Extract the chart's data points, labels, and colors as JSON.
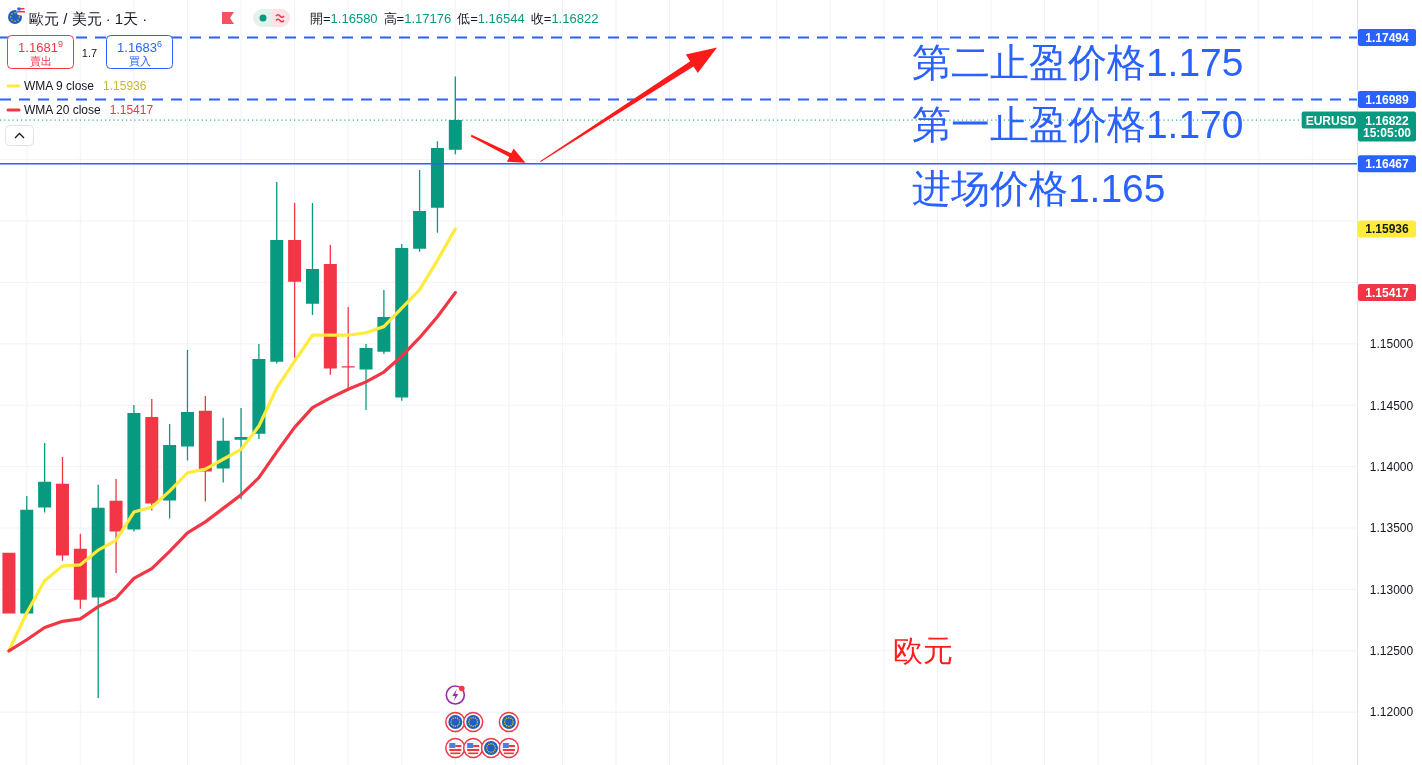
{
  "chart_data": {
    "type": "candlestick",
    "title": "歐元 / 美元 · 1天 ·",
    "categories": [
      null,
      null,
      null,
      null,
      null,
      null,
      null,
      null,
      null,
      null,
      null,
      null,
      null,
      null,
      null,
      null,
      null,
      null,
      null,
      null,
      null,
      null,
      null,
      null,
      null,
      null,
      null,
      null,
      null,
      null,
      null,
      null,
      null,
      null,
      null,
      null,
      null,
      null,
      null,
      null,
      null,
      null,
      null,
      null,
      null,
      null,
      null,
      null,
      null,
      null,
      null,
      null,
      null,
      null,
      null,
      null,
      null,
      null,
      null,
      null,
      null,
      null,
      null,
      null,
      null,
      null,
      null,
      null,
      null,
      null,
      null,
      null,
      null,
      null,
      null,
      null
    ],
    "ohlc": [
      [
        1.13298,
        1.13298,
        1.12804,
        1.12804
      ],
      [
        1.12804,
        1.13761,
        1.1279,
        1.13648
      ],
      [
        1.13667,
        1.14193,
        1.13626,
        1.13876
      ],
      [
        1.1386,
        1.14079,
        1.13233,
        1.13276
      ],
      [
        1.13331,
        1.13453,
        1.12843,
        1.12916
      ],
      [
        1.12935,
        1.13852,
        1.12116,
        1.13664
      ],
      [
        1.13721,
        1.139,
        1.13133,
        1.13472
      ],
      [
        1.13488,
        1.14502,
        1.13472,
        1.14437
      ],
      [
        1.14405,
        1.14551,
        1.13642,
        1.13699
      ],
      [
        1.13724,
        1.14348,
        1.13577,
        1.14177
      ],
      [
        1.14163,
        1.1495,
        1.14049,
        1.14445
      ],
      [
        1.14454,
        1.14576,
        1.13716,
        1.1396
      ],
      [
        1.13984,
        1.14397,
        1.1387,
        1.1421
      ],
      [
        1.14218,
        1.14478,
        1.13735,
        1.14242
      ],
      [
        1.14267,
        1.14999,
        1.14225,
        1.14877
      ],
      [
        1.14855,
        1.16317,
        1.1484,
        1.15845
      ],
      [
        1.15845,
        1.16146,
        1.14887,
        1.15506
      ],
      [
        1.15327,
        1.16146,
        1.15235,
        1.15609
      ],
      [
        1.1565,
        1.15804,
        1.14749,
        1.14798
      ],
      [
        1.14812,
        1.153,
        1.14616,
        1.14812
      ],
      [
        1.1479,
        1.14999,
        1.14462,
        1.14966
      ],
      [
        1.14936,
        1.15438,
        1.14917,
        1.15219
      ],
      [
        1.14562,
        1.15812,
        1.14537,
        1.1578
      ],
      [
        1.15774,
        1.16415,
        1.1575,
        1.16081
      ],
      [
        1.16108,
        1.1665,
        1.15904,
        1.16594
      ],
      [
        1.1658,
        1.17176,
        1.16544,
        1.16822
      ],
      null,
      null,
      null,
      null,
      null,
      null,
      null,
      null,
      null,
      null,
      null,
      null,
      null,
      null,
      null,
      null,
      null,
      null,
      null,
      null,
      null,
      null,
      null,
      null,
      null,
      null,
      null,
      null,
      null,
      null,
      null,
      null,
      null,
      null,
      null,
      null,
      null,
      null,
      null,
      null,
      null,
      null,
      null,
      null,
      null,
      null,
      null,
      null,
      null,
      null
    ],
    "colors": [
      "#f23645",
      "#089981",
      "#089981",
      "#f23645",
      "#f23645",
      "#089981",
      "#f23645",
      "#089981",
      "#f23645",
      "#089981",
      "#089981",
      "#f23645",
      "#089981",
      "#089981",
      "#089981",
      "#089981",
      "#f23645",
      "#089981",
      "#f23645",
      "#f23645",
      "#089981",
      "#089981",
      "#089981",
      "#089981",
      "#089981",
      "#089981",
      null,
      null,
      null,
      null,
      null,
      null,
      null,
      null,
      null,
      null,
      null,
      null,
      null,
      null,
      null,
      null,
      null,
      null,
      null,
      null,
      null,
      null,
      null,
      null,
      null,
      null,
      null,
      null,
      null,
      null,
      null,
      null,
      null,
      null,
      null,
      null,
      null,
      null,
      null,
      null,
      null,
      null,
      null,
      null,
      null,
      null,
      null,
      null,
      null,
      null
    ],
    "series": [
      {
        "name": "WMA 9 close",
        "type": "line",
        "color": "#ffeb3b",
        "values": [
          1.125,
          1.1281,
          1.1307,
          1.1319,
          1.132,
          1.1332,
          1.134,
          1.1363,
          1.1367,
          1.138,
          1.1395,
          1.1398,
          1.1406,
          1.1414,
          1.1433,
          1.1464,
          1.1486,
          1.1507,
          1.1507,
          1.1507,
          1.1509,
          1.1514,
          1.1529,
          1.1544,
          1.1568,
          1.15936,
          null,
          null,
          null,
          null,
          null,
          null,
          null,
          null,
          null,
          null,
          null,
          null,
          null,
          null,
          null,
          null,
          null,
          null,
          null,
          null,
          null,
          null,
          null,
          null,
          null,
          null,
          null,
          null,
          null,
          null,
          null,
          null,
          null,
          null,
          null,
          null,
          null,
          null,
          null,
          null,
          null,
          null,
          null,
          null,
          null,
          null,
          null,
          null,
          null,
          null
        ]
      },
      {
        "name": "WMA 20 close",
        "type": "line",
        "color": "#f23645",
        "values": [
          1.125,
          1.1259,
          1.1269,
          1.1274,
          1.1276,
          1.1286,
          1.1293,
          1.1309,
          1.1317,
          1.1331,
          1.1346,
          1.1355,
          1.1366,
          1.1377,
          1.1391,
          1.1412,
          1.1432,
          1.1448,
          1.1456,
          1.1463,
          1.1469,
          1.1477,
          1.149,
          1.1505,
          1.1522,
          1.15417,
          null,
          null,
          null,
          null,
          null,
          null,
          null,
          null,
          null,
          null,
          null,
          null,
          null,
          null,
          null,
          null,
          null,
          null,
          null,
          null,
          null,
          null,
          null,
          null,
          null,
          null,
          null,
          null,
          null,
          null,
          null,
          null,
          null,
          null,
          null,
          null,
          null,
          null,
          null,
          null,
          null,
          null,
          null,
          null,
          null,
          null,
          null,
          null,
          null,
          null
        ]
      }
    ],
    "ylim": [
      1.1157,
      1.178
    ],
    "yticks": [
      {
        "value": 1.12,
        "label": "1.12000"
      },
      {
        "value": 1.125,
        "label": "1.12500"
      },
      {
        "value": 1.13,
        "label": "1.13000"
      },
      {
        "value": 1.135,
        "label": "1.13500"
      },
      {
        "value": 1.14,
        "label": "1.14000"
      },
      {
        "value": 1.145,
        "label": "1.14500"
      },
      {
        "value": 1.15,
        "label": "1.15000"
      },
      {
        "value": 1.155,
        "label": null
      },
      {
        "value": 1.16,
        "label": null
      },
      {
        "value": 1.165,
        "label": null
      }
    ],
    "grid": true,
    "legend": "top left",
    "tick_labels": "y",
    "ref_lines": [
      {
        "axis": "y",
        "value": 1.17494,
        "label": "1.17494",
        "color": "#2962ff",
        "line_style": "dashed"
      },
      {
        "axis": "y",
        "value": 1.16989,
        "label": "1.16989",
        "color": "#2962ff",
        "line_style": "dashed"
      },
      {
        "axis": "y",
        "value": 1.16822,
        "label": "1.16822",
        "color": "#089981",
        "line_style": "dotted"
      },
      {
        "axis": "y",
        "value": 1.16467,
        "label": "1.16467",
        "color": "#2962ff",
        "line_style": "solid"
      }
    ],
    "annotations": [
      "開=1.16580",
      "高=1.17176",
      "低=1.16544",
      "收=1.16822",
      "1.1681$^{9}$",
      "賣出",
      "1.7",
      "1.1683$^{6}$",
      "買入",
      {
        "text": "第二止盈价格1.175",
        "y": 1.17494
      },
      {
        "text": "第一止盈价格1.170",
        "y": 1.16989
      },
      {
        "text": "进场价格1.165",
        "y": 1.16467
      },
      {
        "text": "EURUSD",
        "y": 1.16822
      },
      "15:05:00",
      "1.15936",
      "1.15417",
      "1.15936",
      "1.15417",
      "欧元"
    ]
  }
}
